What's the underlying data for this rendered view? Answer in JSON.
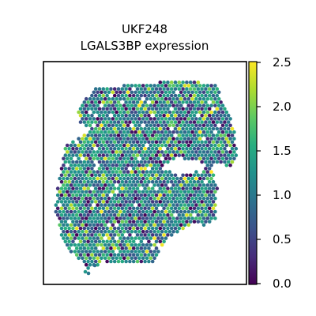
{
  "chart_data": {
    "type": "heatmap",
    "subtype": "spatial spot expression map",
    "title_lines": [
      "UKF248",
      "LGALS3BP expression"
    ],
    "colorbar": {
      "colormap": "viridis",
      "range": [
        0.0,
        2.5
      ],
      "ticks": [
        {
          "value": 0.0,
          "label": "0.0"
        },
        {
          "value": 0.5,
          "label": "0.5"
        },
        {
          "value": 1.0,
          "label": "1.0"
        },
        {
          "value": 1.5,
          "label": "1.5"
        },
        {
          "value": 2.0,
          "label": "2.0"
        },
        {
          "value": 2.5,
          "label": "2.5"
        }
      ]
    },
    "expression_summary": {
      "min": 0.0,
      "max": 2.5,
      "typical": 1.1
    },
    "axes_visible": false,
    "grid": false
  }
}
